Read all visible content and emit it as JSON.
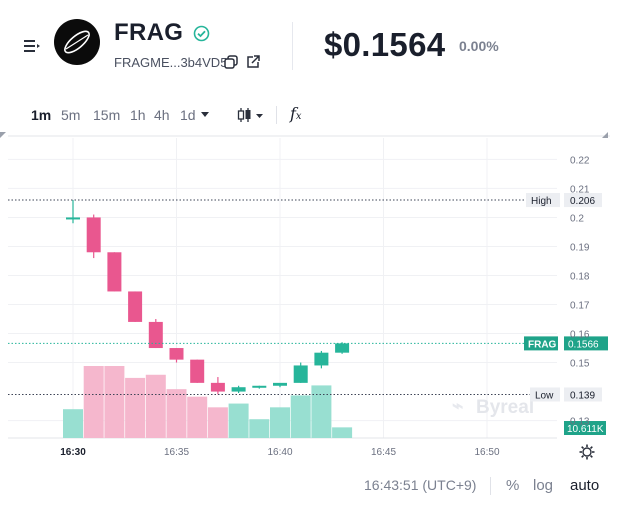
{
  "token": {
    "name": "FRAG",
    "address": "FRAGME...3b4VD5",
    "price": "$0.1564",
    "change": "0.00%"
  },
  "toolbar": {
    "timeframes": [
      "1m",
      "5m",
      "15m",
      "1h",
      "4h",
      "1d"
    ],
    "active_timeframe": "1m"
  },
  "chart": {
    "y_ticks": [
      "0.22",
      "0.21",
      "0.2",
      "0.19",
      "0.18",
      "0.17",
      "0.16",
      "0.15",
      "0.13"
    ],
    "x_ticks": [
      "16:30",
      "16:35",
      "16:40",
      "16:45",
      "16:50"
    ],
    "high_label": "High",
    "high_value": "0.206",
    "low_label": "Low",
    "low_value": "0.139",
    "last_label": "FRAG",
    "last_value": "0.1566",
    "volume_value": "10.611K",
    "watermark": "Byreal"
  },
  "chart_data": {
    "type": "candlestick",
    "time": [
      "16:30",
      "16:31",
      "16:32",
      "16:33",
      "16:34",
      "16:35",
      "16:36",
      "16:37",
      "16:38",
      "16:39",
      "16:40",
      "16:41",
      "16:42",
      "16:43"
    ],
    "open": [
      0.2,
      0.2,
      0.188,
      0.1745,
      0.164,
      0.155,
      0.151,
      0.143,
      0.14,
      0.1415,
      0.142,
      0.143,
      0.149,
      0.1534
    ],
    "high": [
      0.206,
      0.201,
      0.188,
      0.1745,
      0.165,
      0.155,
      0.151,
      0.145,
      0.142,
      0.142,
      0.1425,
      0.15,
      0.154,
      0.157
    ],
    "low": [
      0.198,
      0.186,
      0.1745,
      0.164,
      0.155,
      0.15,
      0.143,
      0.139,
      0.1395,
      0.141,
      0.1415,
      0.143,
      0.148,
      0.153
    ],
    "close": [
      0.2,
      0.188,
      0.1745,
      0.164,
      0.155,
      0.151,
      0.143,
      0.14,
      0.1415,
      0.142,
      0.143,
      0.149,
      0.1534,
      0.1566
    ],
    "volume": [
      4.6,
      11.5,
      11.5,
      9.6,
      10.1,
      7.8,
      6.6,
      4.9,
      5.5,
      3.0,
      4.9,
      6.8,
      8.4,
      1.7
    ],
    "ylim": [
      0.124,
      0.226
    ],
    "up_color": "#26b59a",
    "down_color": "#e9578f",
    "up_volume_color": "#98dfd1",
    "down_volume_color": "#f5b7cd"
  },
  "footer": {
    "time": "16:43:51 (UTC+9)",
    "percent": "%",
    "log": "log",
    "auto": "auto"
  }
}
